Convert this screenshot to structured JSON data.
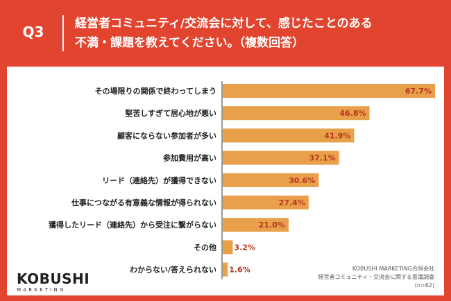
{
  "header": {
    "question_label": "Q3",
    "title_line1": "経営者コミュニティ/交流会に対して、感じたことのある",
    "title_line2": "不満・課題を教えてください。（複数回答）"
  },
  "footer": {
    "logo_main": "KOBUSHI",
    "logo_sub": "MARKETING",
    "source_line1": "KOBUSHI MARKETING合同会社",
    "source_line2": "経営者コミュニティ・交流会に関する意識調査",
    "source_line3": "(n=62)"
  },
  "colors": {
    "background": "#e2452f",
    "bar": "#e9a04a",
    "value_label": "#b5361f",
    "axis": "#333333"
  },
  "chart_data": {
    "type": "bar",
    "orientation": "horizontal",
    "categories": [
      "その場限りの関係で終わってしまう",
      "堅苦しすぎて居心地が悪い",
      "顧客にならない参加者が多い",
      "参加費用が高い",
      "リード（連絡先）が獲得できない",
      "仕事につながる有意義な情報が得られない",
      "獲得したリード（連絡先）から受注に繋がらない",
      "その他",
      "わからない/答えられない"
    ],
    "values": [
      67.7,
      46.8,
      41.9,
      37.1,
      30.6,
      27.4,
      21.0,
      3.2,
      1.6
    ],
    "value_labels": [
      "67.7%",
      "46.8%",
      "41.9%",
      "37.1%",
      "30.6%",
      "27.4%",
      "21.0%",
      "3.2%",
      "1.6%"
    ],
    "xlim": [
      0,
      67.7
    ]
  }
}
